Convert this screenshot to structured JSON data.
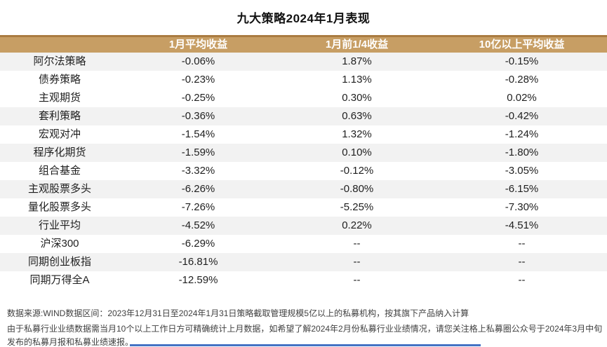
{
  "title": "九大策略2024年1月表现",
  "colors": {
    "header_bg": "#C79E64",
    "header_top_border": "#AA7B41",
    "row_shaded_bg": "#F2F2F2",
    "text": "#1F1F1F",
    "header_text": "#FFFFFF",
    "footer_text": "#404040",
    "bottom_bar_blue": "#4472C4"
  },
  "table": {
    "header": [
      "",
      "1月平均收益",
      "1月前1/4收益",
      "10亿以上平均收益"
    ]
  },
  "chart_data": {
    "type": "table",
    "title": "九大策略2024年1月表现",
    "columns": [
      "",
      "1月平均收益",
      "1月前1/4收益",
      "10亿以上平均收益"
    ],
    "rows": [
      [
        "阿尔法策略",
        "-0.06%",
        "1.87%",
        "-0.15%"
      ],
      [
        "债券策略",
        "-0.23%",
        "1.13%",
        "-0.28%"
      ],
      [
        "主观期货",
        "-0.25%",
        "0.30%",
        "0.02%"
      ],
      [
        "套利策略",
        "-0.36%",
        "0.63%",
        "-0.42%"
      ],
      [
        "宏观对冲",
        "-1.54%",
        "1.32%",
        "-1.24%"
      ],
      [
        "程序化期货",
        "-1.59%",
        "0.10%",
        "-1.80%"
      ],
      [
        "组合基金",
        "-3.32%",
        "-0.12%",
        "-3.05%"
      ],
      [
        "主观股票多头",
        "-6.26%",
        "-0.80%",
        "-6.15%"
      ],
      [
        "量化股票多头",
        "-7.26%",
        "-5.25%",
        "-7.30%"
      ],
      [
        "行业平均",
        "-4.52%",
        "0.22%",
        "-4.51%"
      ],
      [
        "沪深300",
        "-6.29%",
        "--",
        "--"
      ],
      [
        "同期创业板指",
        "-16.81%",
        "--",
        "--"
      ],
      [
        "同期万得全A",
        "-12.59%",
        "--",
        "--"
      ]
    ]
  },
  "footer": {
    "lines": [
      "数据来源:WIND数据区间：2023年12月31日至2024年1月31日策略截取管理规模5亿以上的私募机构，按其旗下产品纳入计算",
      "由于私募行业业绩数据需当月10个以上工作日方可精确统计上月数据，如希望了解2024年2月份私募行业业绩情况，请您关注格上私募圈公众号于2024年3月中旬",
      "发布的私募月报和私募业绩速报。"
    ]
  }
}
